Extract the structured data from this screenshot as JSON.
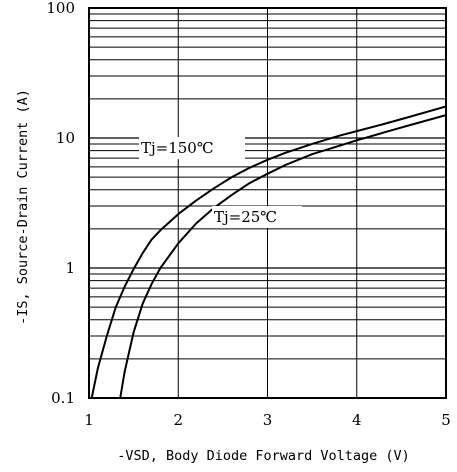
{
  "chart_data": {
    "type": "line",
    "title": "",
    "xlabel": "-VSD, Body Diode Forward Voltage (V)",
    "ylabel": "-IS, Source-Drain Current (A)",
    "xlim": [
      1,
      5
    ],
    "ylim": [
      0.1,
      100
    ],
    "yscale": "log",
    "grid": true,
    "x_ticks": [
      "1",
      "2",
      "3",
      "4",
      "5"
    ],
    "y_ticks": [
      "0.1",
      "1",
      "10",
      "100"
    ],
    "series": [
      {
        "name": "Tj=150℃",
        "x": [
          1.03,
          1.1,
          1.2,
          1.3,
          1.4,
          1.5,
          1.6,
          1.7,
          1.8,
          2.0,
          2.2,
          2.4,
          2.6,
          2.8,
          3.0,
          3.2,
          3.5,
          3.8,
          4.0,
          4.3,
          4.6,
          5.0
        ],
        "y": [
          0.1,
          0.17,
          0.3,
          0.5,
          0.72,
          0.98,
          1.3,
          1.65,
          1.95,
          2.6,
          3.3,
          4.1,
          5.0,
          5.9,
          6.8,
          7.7,
          9.0,
          10.4,
          11.3,
          12.8,
          14.6,
          17.5
        ]
      },
      {
        "name": "Tj=25℃",
        "x": [
          1.35,
          1.4,
          1.5,
          1.6,
          1.7,
          1.8,
          2.0,
          2.2,
          2.4,
          2.6,
          2.8,
          3.0,
          3.2,
          3.5,
          3.8,
          4.0,
          4.3,
          4.6,
          5.0
        ],
        "y": [
          0.1,
          0.16,
          0.32,
          0.53,
          0.75,
          1.0,
          1.55,
          2.2,
          2.9,
          3.65,
          4.5,
          5.3,
          6.2,
          7.5,
          8.7,
          9.6,
          11.0,
          12.6,
          15.0
        ]
      }
    ]
  }
}
